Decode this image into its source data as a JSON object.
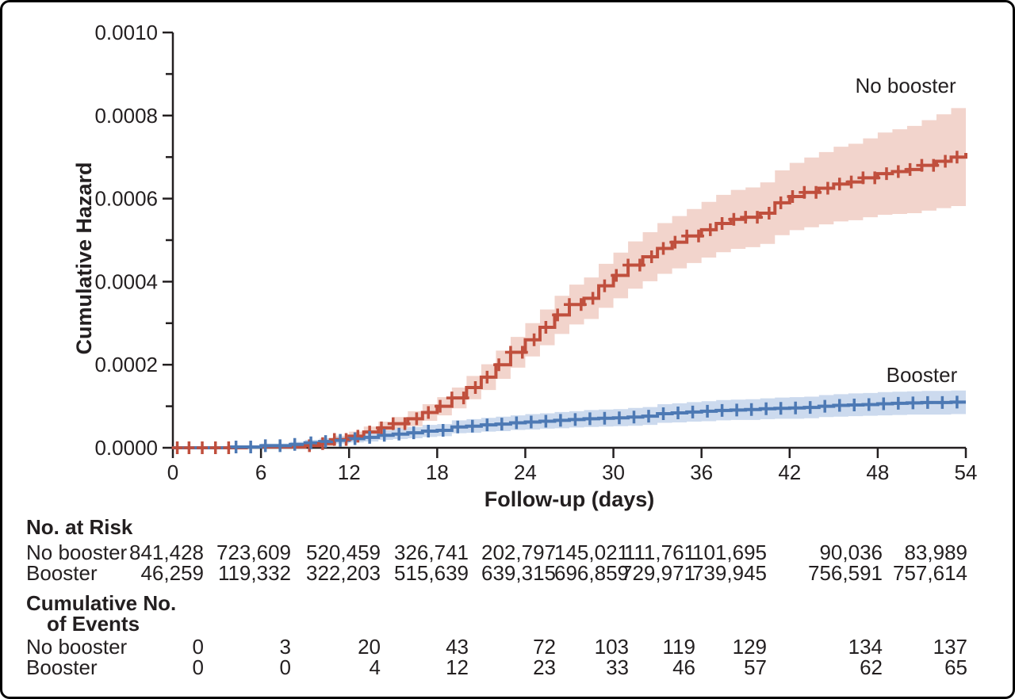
{
  "figure": {
    "ylabel": "Cumulative Hazard",
    "xlabel": "Follow-up (days)"
  },
  "chart_data": {
    "type": "line",
    "subtype": "step-cumulative-hazard-with-confidence-bands",
    "title": "",
    "xlabel": "Follow-up (days)",
    "ylabel": "Cumulative Hazard",
    "xlim": [
      0,
      54
    ],
    "x_ticks": [
      0,
      6,
      12,
      18,
      24,
      30,
      36,
      42,
      48,
      54
    ],
    "y_scale_note": "all hazard values below are expressed as multiples of 0.0001",
    "ylim_scaled": [
      0,
      10
    ],
    "y_major_ticks": [
      {
        "v": 0,
        "label": "0.0000"
      },
      {
        "v": 2,
        "label": "0.0002"
      },
      {
        "v": 4,
        "label": "0.0004"
      },
      {
        "v": 6,
        "label": "0.0006"
      },
      {
        "v": 8,
        "label": "0.0008"
      },
      {
        "v": 10,
        "label": "0.0010"
      }
    ],
    "y_minor_ticks": [
      1,
      3,
      5,
      7,
      9
    ],
    "grid": false,
    "legend_position": "annotations-on-plot",
    "series": [
      {
        "name": "No booster",
        "color": "#c04f3d",
        "band_color": "#f2d4cc",
        "label_anchor": {
          "day": 49.9,
          "value": 8.55
        },
        "steps": [
          [
            0,
            0.0,
            0.0,
            0.0
          ],
          [
            5,
            0.02,
            0.0,
            0.05
          ],
          [
            9,
            0.05,
            0.01,
            0.09
          ],
          [
            10,
            0.1,
            0.04,
            0.16
          ],
          [
            11,
            0.2,
            0.11,
            0.29
          ],
          [
            12,
            0.28,
            0.17,
            0.39
          ],
          [
            13,
            0.38,
            0.25,
            0.51
          ],
          [
            14,
            0.48,
            0.33,
            0.63
          ],
          [
            15,
            0.58,
            0.42,
            0.74
          ],
          [
            16,
            0.7,
            0.52,
            0.88
          ],
          [
            17,
            0.85,
            0.65,
            1.05
          ],
          [
            18,
            1.0,
            0.78,
            1.22
          ],
          [
            19,
            1.2,
            0.95,
            1.45
          ],
          [
            20,
            1.45,
            1.17,
            1.73
          ],
          [
            21,
            1.7,
            1.39,
            2.01
          ],
          [
            22,
            2.0,
            1.66,
            2.34
          ],
          [
            23,
            2.3,
            1.93,
            2.67
          ],
          [
            24,
            2.6,
            2.2,
            3.0
          ],
          [
            25,
            2.9,
            2.47,
            3.33
          ],
          [
            26,
            3.2,
            2.74,
            3.66
          ],
          [
            27,
            3.45,
            2.97,
            3.93
          ],
          [
            28,
            3.6,
            3.1,
            4.1
          ],
          [
            29,
            3.9,
            3.37,
            4.43
          ],
          [
            30,
            4.15,
            3.6,
            4.7
          ],
          [
            31,
            4.4,
            3.83,
            4.97
          ],
          [
            32,
            4.6,
            4.01,
            5.19
          ],
          [
            33,
            4.8,
            4.19,
            5.41
          ],
          [
            34,
            4.95,
            4.32,
            5.58
          ],
          [
            35,
            5.1,
            4.45,
            5.75
          ],
          [
            36,
            5.25,
            4.58,
            5.92
          ],
          [
            37,
            5.4,
            4.71,
            6.09
          ],
          [
            38,
            5.5,
            4.79,
            6.21
          ],
          [
            39,
            5.55,
            4.83,
            6.27
          ],
          [
            40,
            5.65,
            4.91,
            6.39
          ],
          [
            41,
            5.9,
            5.12,
            6.68
          ],
          [
            42,
            6.05,
            5.24,
            6.86
          ],
          [
            43,
            6.15,
            5.31,
            6.99
          ],
          [
            44,
            6.25,
            5.38,
            7.12
          ],
          [
            45,
            6.35,
            5.45,
            7.25
          ],
          [
            46,
            6.4,
            5.48,
            7.32
          ],
          [
            47,
            6.5,
            5.55,
            7.45
          ],
          [
            48,
            6.6,
            5.61,
            7.59
          ],
          [
            49,
            6.65,
            5.63,
            7.67
          ],
          [
            50,
            6.7,
            5.65,
            7.75
          ],
          [
            51,
            6.8,
            5.71,
            7.89
          ],
          [
            52,
            6.9,
            5.77,
            8.03
          ],
          [
            53,
            7.0,
            5.82,
            8.18
          ],
          [
            54,
            7.1,
            5.87,
            8.33
          ]
        ],
        "censor_days": [
          0.3,
          1.1,
          2.0,
          2.9,
          3.8,
          9.3,
          10.2,
          11.0,
          11.8,
          12.6,
          13.4,
          14.2,
          15.0,
          15.8,
          16.6,
          17.4,
          18.2,
          19.0,
          19.8,
          20.6,
          21.4,
          22.2,
          23.0,
          23.8,
          24.6,
          25.4,
          26.2,
          27.0,
          27.8,
          28.6,
          29.4,
          30.2,
          31.0,
          31.8,
          32.6,
          33.4,
          34.2,
          35.0,
          35.8,
          36.6,
          37.4,
          38.2,
          39.0,
          39.8,
          40.6,
          41.4,
          42.2,
          43.0,
          43.8,
          44.6,
          45.4,
          46.2,
          47.0,
          47.8,
          48.6,
          49.4,
          50.2,
          51.0,
          51.8,
          52.6,
          53.4
        ]
      },
      {
        "name": "Booster",
        "color": "#4d79b4",
        "band_color": "#ccdaee",
        "label_anchor": {
          "day": 51.0,
          "value": 1.58
        },
        "steps": [
          [
            0,
            0.0,
            0.0,
            0.0
          ],
          [
            4,
            0.02,
            0.0,
            0.05
          ],
          [
            6,
            0.05,
            0.01,
            0.1
          ],
          [
            8,
            0.08,
            0.03,
            0.14
          ],
          [
            9,
            0.12,
            0.06,
            0.19
          ],
          [
            10,
            0.15,
            0.08,
            0.23
          ],
          [
            11,
            0.18,
            0.1,
            0.27
          ],
          [
            12,
            0.22,
            0.13,
            0.32
          ],
          [
            13,
            0.25,
            0.15,
            0.36
          ],
          [
            14,
            0.3,
            0.19,
            0.42
          ],
          [
            15,
            0.33,
            0.21,
            0.46
          ],
          [
            16,
            0.36,
            0.23,
            0.5
          ],
          [
            17,
            0.4,
            0.26,
            0.55
          ],
          [
            18,
            0.42,
            0.28,
            0.57
          ],
          [
            19,
            0.5,
            0.35,
            0.66
          ],
          [
            20,
            0.52,
            0.36,
            0.69
          ],
          [
            21,
            0.55,
            0.39,
            0.72
          ],
          [
            22,
            0.57,
            0.4,
            0.75
          ],
          [
            23,
            0.6,
            0.43,
            0.78
          ],
          [
            24,
            0.62,
            0.44,
            0.81
          ],
          [
            25,
            0.64,
            0.46,
            0.83
          ],
          [
            26,
            0.66,
            0.47,
            0.86
          ],
          [
            27,
            0.68,
            0.49,
            0.88
          ],
          [
            28,
            0.7,
            0.5,
            0.91
          ],
          [
            29,
            0.71,
            0.51,
            0.92
          ],
          [
            30,
            0.72,
            0.52,
            0.93
          ],
          [
            31,
            0.74,
            0.53,
            0.96
          ],
          [
            32,
            0.76,
            0.55,
            0.98
          ],
          [
            33,
            0.82,
            0.6,
            1.05
          ],
          [
            34,
            0.84,
            0.61,
            1.07
          ],
          [
            35,
            0.86,
            0.63,
            1.1
          ],
          [
            36,
            0.88,
            0.64,
            1.12
          ],
          [
            37,
            0.9,
            0.66,
            1.15
          ],
          [
            38,
            0.91,
            0.67,
            1.16
          ],
          [
            39,
            0.92,
            0.67,
            1.17
          ],
          [
            40,
            0.94,
            0.69,
            1.19
          ],
          [
            41,
            0.95,
            0.7,
            1.21
          ],
          [
            42,
            0.96,
            0.7,
            1.22
          ],
          [
            43,
            0.97,
            0.71,
            1.23
          ],
          [
            44,
            1.0,
            0.74,
            1.27
          ],
          [
            45,
            1.02,
            0.75,
            1.29
          ],
          [
            46,
            1.03,
            0.76,
            1.31
          ],
          [
            47,
            1.04,
            0.77,
            1.32
          ],
          [
            48,
            1.06,
            0.78,
            1.34
          ],
          [
            49,
            1.07,
            0.79,
            1.35
          ],
          [
            50,
            1.08,
            0.8,
            1.36
          ],
          [
            51,
            1.09,
            0.8,
            1.37
          ],
          [
            52,
            1.09,
            0.8,
            1.37
          ],
          [
            53,
            1.1,
            0.81,
            1.38
          ],
          [
            54,
            1.1,
            0.81,
            1.39
          ]
        ],
        "censor_days": [
          4.3,
          5.3,
          6.3,
          7.3,
          8.3,
          9.4,
          10.4,
          11.4,
          12.4,
          13.4,
          14.4,
          15.4,
          16.4,
          17.4,
          18.4,
          19.4,
          20.4,
          21.4,
          22.4,
          23.4,
          24.4,
          25.4,
          26.4,
          27.4,
          28.4,
          29.4,
          30.4,
          31.4,
          32.4,
          33.4,
          34.4,
          35.4,
          36.4,
          37.4,
          38.4,
          39.4,
          40.4,
          41.4,
          42.4,
          43.4,
          44.4,
          45.4,
          46.4,
          47.4,
          48.4,
          49.4,
          50.4,
          51.4,
          52.4,
          53.4
        ]
      }
    ]
  },
  "annotations": {
    "no_booster": "No booster",
    "booster": "Booster"
  },
  "risk_table": {
    "header": "No. at Risk",
    "rows": [
      {
        "label": "No booster",
        "values": [
          "841,428",
          "723,609",
          "520,459",
          "326,741",
          "202,797",
          "145,021",
          "111,761",
          "101,695",
          "90,036",
          "83,989"
        ]
      },
      {
        "label": "Booster",
        "values": [
          "46,259",
          "119,332",
          "322,203",
          "515,639",
          "639,315",
          "696,859",
          "729,971",
          "739,945",
          "756,591",
          "757,614"
        ]
      }
    ],
    "events_header": [
      "Cumulative No.",
      "of Events"
    ],
    "events_rows": [
      {
        "label": "No booster",
        "values": [
          "0",
          "3",
          "20",
          "43",
          "72",
          "103",
          "119",
          "129",
          "134",
          "137"
        ]
      },
      {
        "label": "Booster",
        "values": [
          "0",
          "0",
          "4",
          "12",
          "23",
          "33",
          "46",
          "57",
          "62",
          "65"
        ]
      }
    ]
  },
  "colors": {
    "no_booster_line": "#c04f3d",
    "no_booster_band": "#f2d4cc",
    "booster_line": "#4d79b4",
    "booster_band": "#ccdaee",
    "axis": "#231f20",
    "text": "#231f20"
  }
}
